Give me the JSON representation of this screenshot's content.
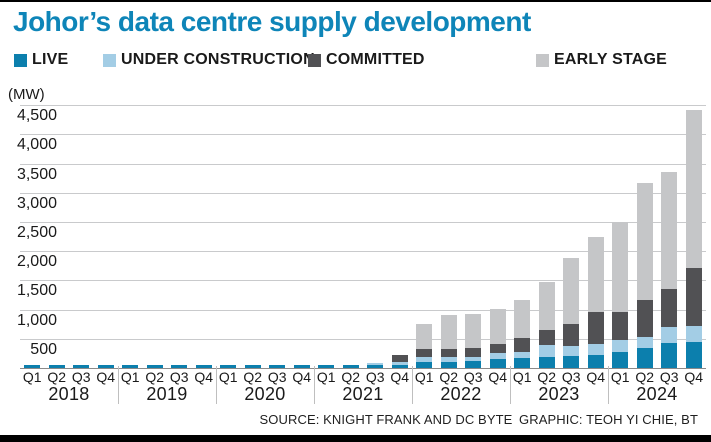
{
  "page": {
    "title": "Johor’s data centre supply development",
    "title_color": "#0e85b8",
    "mw_label": "(MW)",
    "source_text": "SOURCE: KNIGHT FRANK AND DC BYTE GRAPHIC: TEOH YI CHIE, BT"
  },
  "legend": {
    "items": [
      {
        "label": "LIVE",
        "color": "#0c7fad"
      },
      {
        "label": "UNDER CONSTRUCTION",
        "color": "#a3cde5"
      },
      {
        "label": "COMMITTED",
        "color": "#515154"
      },
      {
        "label": "EARLY STAGE",
        "color": "#c5c6c8"
      }
    ]
  },
  "chart_data": {
    "type": "bar",
    "stacked": true,
    "unit": "MW",
    "title": "Johor’s data centre supply development",
    "ylabel": "(MW)",
    "ylim": [
      0,
      4500
    ],
    "ytick_step": 500,
    "ytick_labels": [
      "500",
      "1,000",
      "1,500",
      "2,000",
      "2,500",
      "3,000",
      "3,500",
      "4,000",
      "4,500"
    ],
    "grid": true,
    "legend_position": "top",
    "years": [
      "2018",
      "2019",
      "2020",
      "2021",
      "2022",
      "2023",
      "2024"
    ],
    "quarters": [
      "Q1",
      "Q2",
      "Q3",
      "Q4"
    ],
    "categories": [
      "2018 Q1",
      "2018 Q2",
      "2018 Q3",
      "2018 Q4",
      "2019 Q1",
      "2019 Q2",
      "2019 Q3",
      "2019 Q4",
      "2020 Q1",
      "2020 Q2",
      "2020 Q3",
      "2020 Q4",
      "2021 Q1",
      "2021 Q2",
      "2021 Q3",
      "2021 Q4",
      "2022 Q1",
      "2022 Q2",
      "2022 Q3",
      "2022 Q4",
      "2023 Q1",
      "2023 Q2",
      "2023 Q3",
      "2023 Q4",
      "2024 Q1",
      "2024 Q2",
      "2024 Q3",
      "2024 Q4"
    ],
    "series": [
      {
        "name": "LIVE",
        "color": "#0c7fad",
        "values": [
          50,
          50,
          50,
          50,
          50,
          50,
          50,
          50,
          50,
          50,
          50,
          50,
          50,
          55,
          60,
          60,
          110,
          110,
          115,
          150,
          170,
          190,
          200,
          230,
          275,
          350,
          420,
          445
        ]
      },
      {
        "name": "UNDER CONSTRUCTION",
        "color": "#a3cde5",
        "values": [
          0,
          0,
          0,
          0,
          0,
          0,
          0,
          0,
          0,
          0,
          0,
          0,
          0,
          0,
          20,
          40,
          80,
          80,
          80,
          100,
          110,
          200,
          180,
          175,
          200,
          180,
          275,
          270
        ]
      },
      {
        "name": "COMMITTED",
        "color": "#515154",
        "values": [
          0,
          0,
          0,
          0,
          0,
          0,
          0,
          0,
          0,
          0,
          0,
          0,
          0,
          0,
          0,
          120,
          140,
          140,
          140,
          170,
          230,
          260,
          380,
          555,
          485,
          640,
          650,
          990
        ]
      },
      {
        "name": "EARLY STAGE",
        "color": "#c5c6c8",
        "values": [
          0,
          0,
          0,
          0,
          0,
          0,
          0,
          0,
          0,
          0,
          0,
          0,
          0,
          0,
          0,
          0,
          430,
          570,
          585,
          590,
          650,
          820,
          1120,
          1285,
          1540,
          1990,
          2015,
          2710
        ]
      }
    ],
    "totals": [
      50,
      50,
      50,
      50,
      50,
      50,
      50,
      50,
      50,
      50,
      50,
      50,
      50,
      55,
      80,
      220,
      760,
      900,
      920,
      1010,
      1160,
      1470,
      1880,
      2245,
      2500,
      3160,
      3360,
      4415
    ]
  }
}
